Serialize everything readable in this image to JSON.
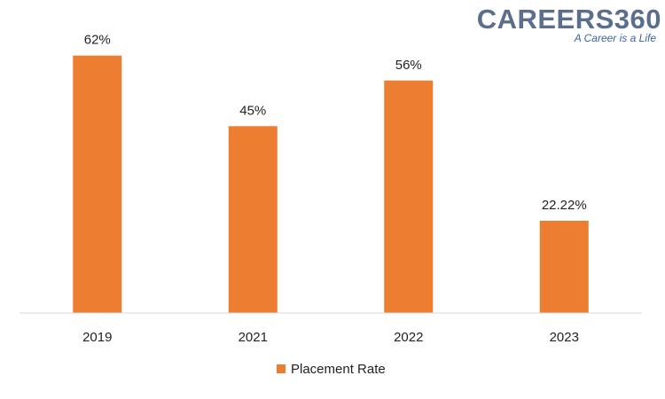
{
  "brand": {
    "name": "CAREERS360",
    "tagline": "A Career is a Life"
  },
  "chart_data": {
    "type": "bar",
    "categories": [
      "2019",
      "2021",
      "2022",
      "2023"
    ],
    "series": [
      {
        "name": "Placement Rate",
        "values": [
          62,
          45,
          56,
          22.22
        ],
        "labels": [
          "62%",
          "45%",
          "56%",
          "22.22%"
        ],
        "color": "#ed7d31"
      }
    ],
    "title": "",
    "xlabel": "",
    "ylabel": "",
    "ylim": [
      0,
      63
    ],
    "grid": false,
    "legend": "bottom"
  }
}
